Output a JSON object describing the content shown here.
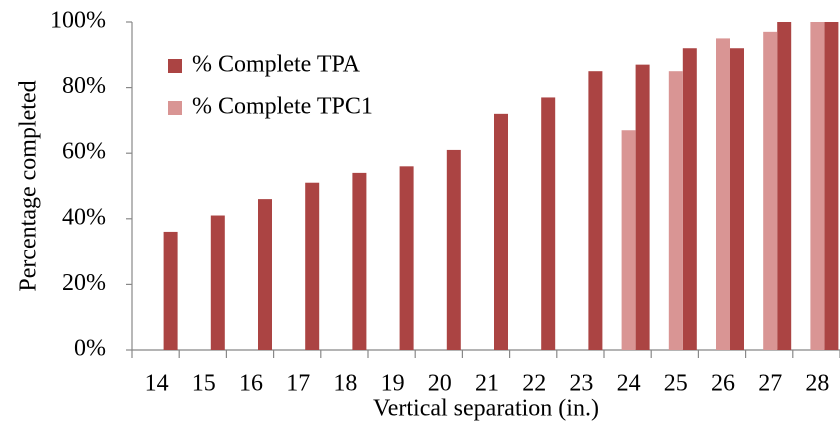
{
  "chart_data": {
    "type": "bar",
    "xlabel": "Vertical separation (in.)",
    "ylabel": "Percentage completed",
    "categories": [
      "14",
      "15",
      "16",
      "17",
      "18",
      "19",
      "20",
      "21",
      "22",
      "23",
      "24",
      "25",
      "26",
      "27",
      "28"
    ],
    "series": [
      {
        "name": "% Complete TPA",
        "color": "#ab4443",
        "values": [
          36,
          41,
          46,
          51,
          54,
          56,
          61,
          72,
          77,
          85,
          87,
          92,
          92,
          100,
          100
        ]
      },
      {
        "name": "% Complete TPC1",
        "color": "#d99594",
        "values": [
          null,
          null,
          null,
          null,
          null,
          null,
          null,
          null,
          null,
          null,
          67,
          85,
          95,
          97,
          100
        ]
      }
    ],
    "ylim": [
      0,
      100
    ],
    "yticks": [
      {
        "value": 0,
        "label": "0%"
      },
      {
        "value": 20,
        "label": "20%"
      },
      {
        "value": 40,
        "label": "40%"
      },
      {
        "value": 60,
        "label": "60%"
      },
      {
        "value": 80,
        "label": "80%"
      },
      {
        "value": 100,
        "label": "100%"
      }
    ],
    "legend": "upper left",
    "grid": false
  }
}
